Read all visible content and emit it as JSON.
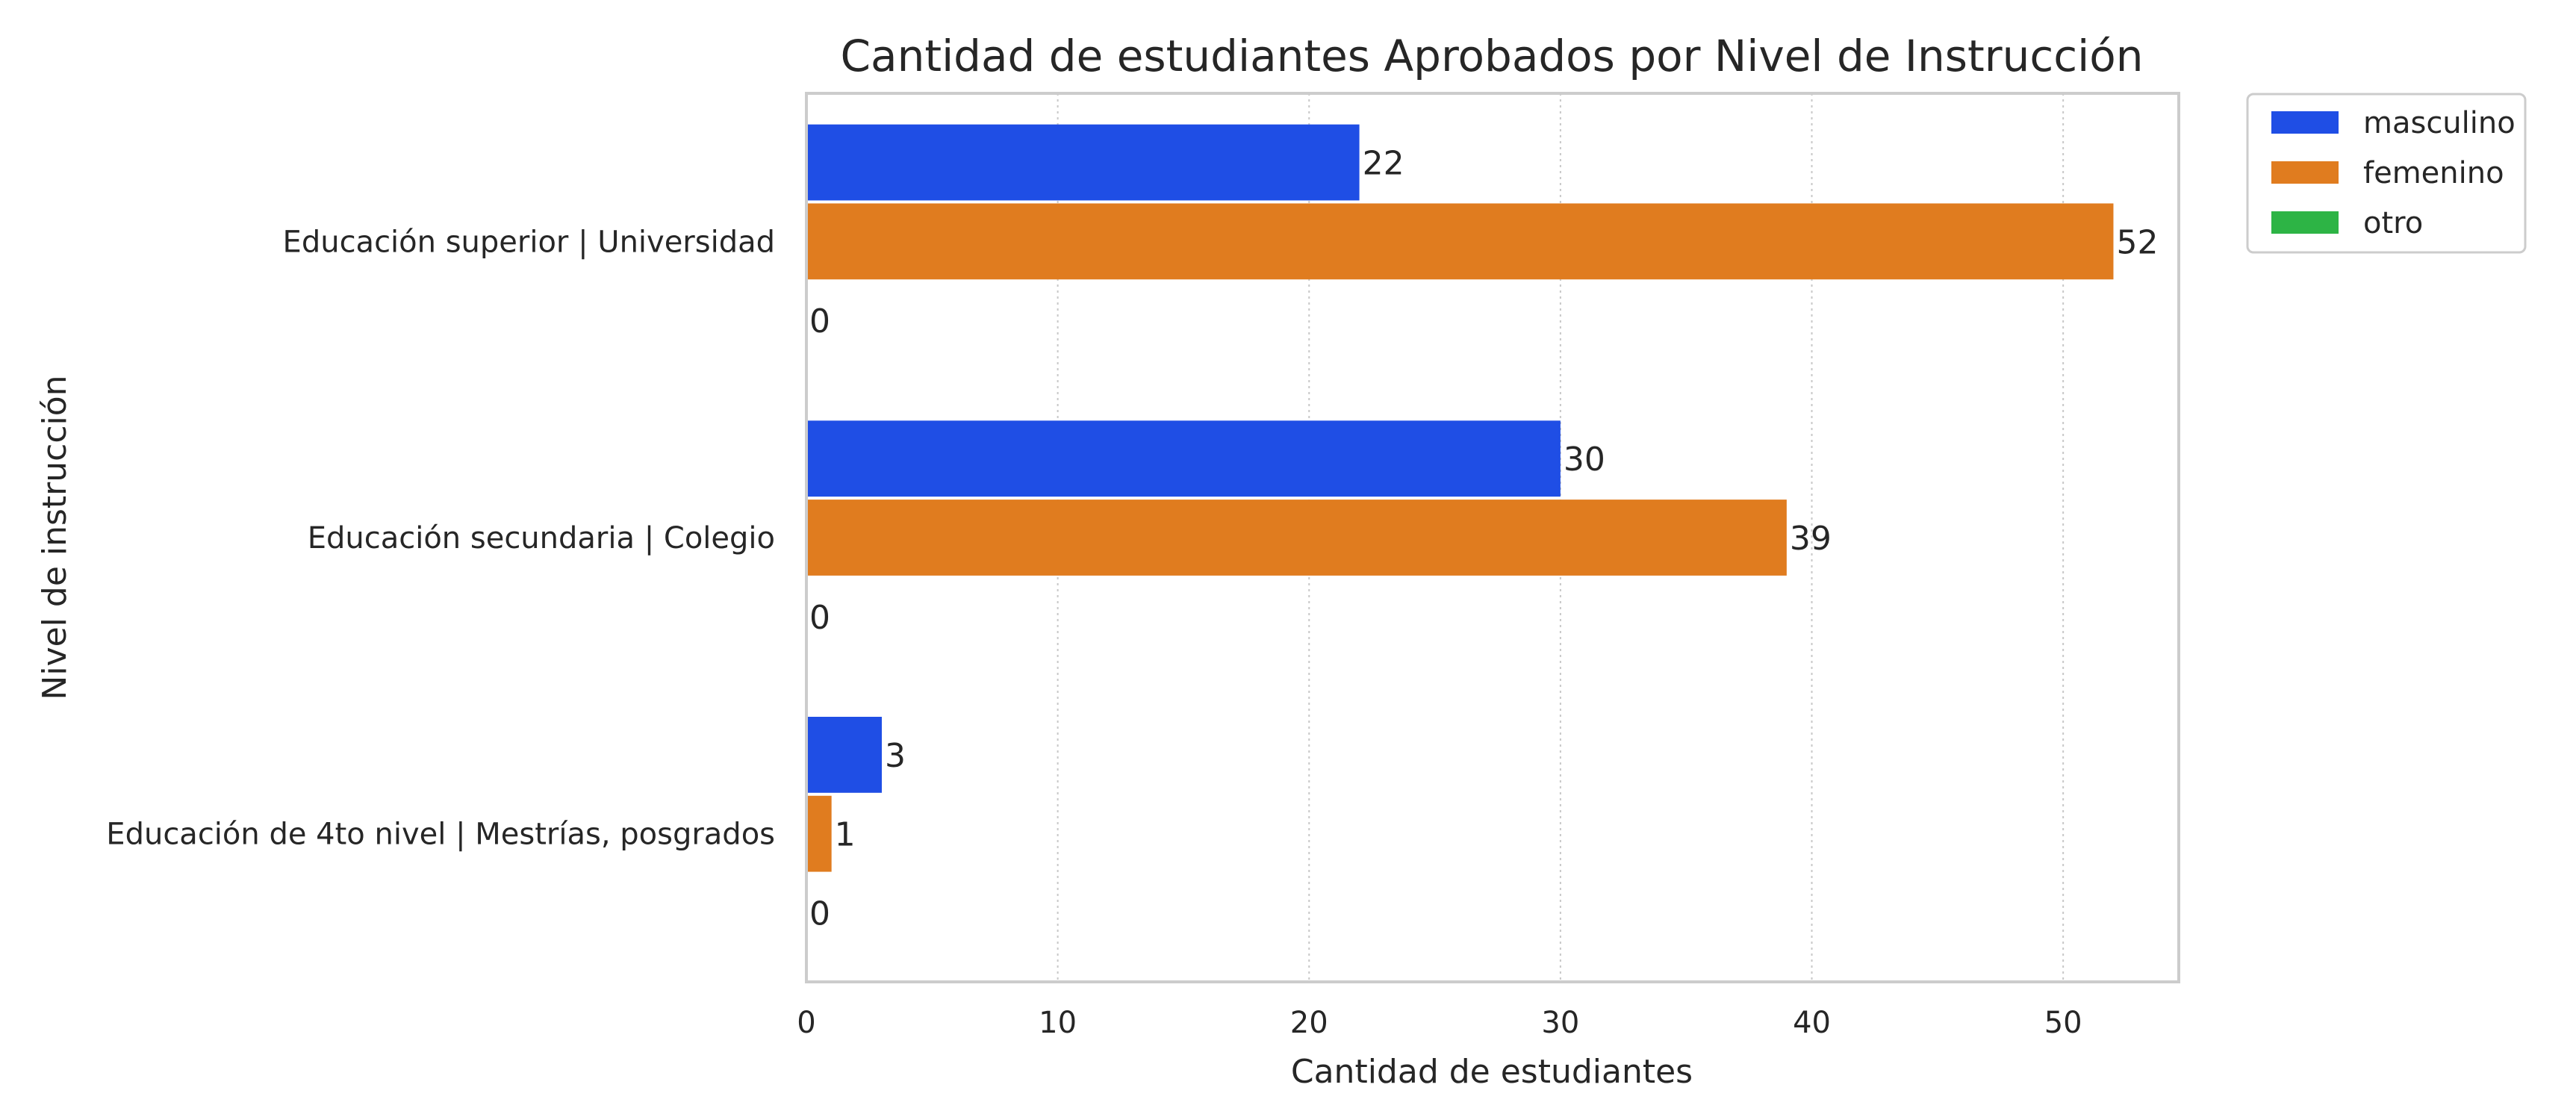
{
  "chart_data": {
    "type": "bar",
    "orientation": "horizontal",
    "title": "Cantidad de estudiantes Aprobados por Nivel de Instrucción",
    "xlabel": "Cantidad de estudiantes",
    "ylabel": "Nivel de instrucción",
    "xlim": [
      0,
      54.6
    ],
    "xticks": [
      "0",
      "10",
      "20",
      "30",
      "40",
      "50"
    ],
    "grid": "vertical, dotted",
    "legend_position": "outside-top-right",
    "categories": [
      "Educación superior | Universidad",
      "Educación secundaria | Colegio",
      "Educación de 4to nivel | Mestrías, posgrados"
    ],
    "series": [
      {
        "name": "masculino",
        "color": "#1f4ee5",
        "values": [
          22,
          30,
          3
        ]
      },
      {
        "name": "femenino",
        "color": "#e07c1f",
        "values": [
          52,
          39,
          1
        ]
      },
      {
        "name": "otro",
        "color": "#2db445",
        "values": [
          0,
          0,
          0
        ]
      }
    ]
  }
}
